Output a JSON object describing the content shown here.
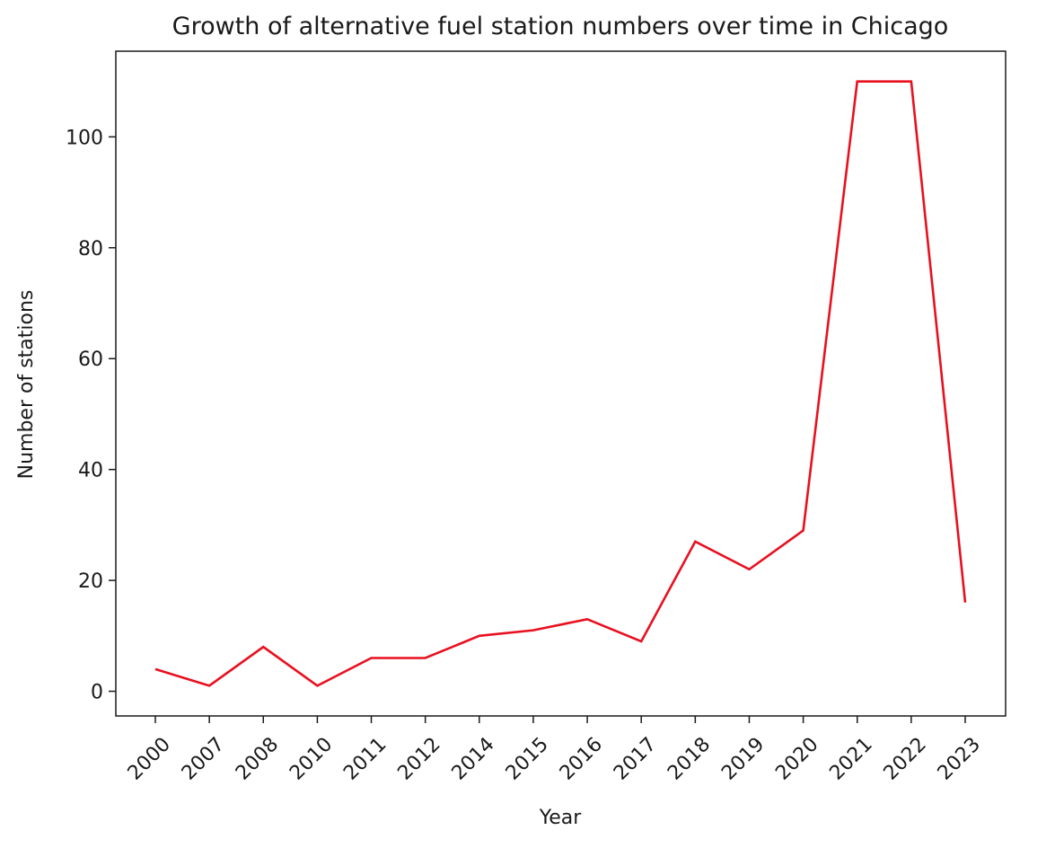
{
  "chart_data": {
    "type": "line",
    "title": "Growth of alternative fuel station numbers over time in Chicago",
    "xlabel": "Year",
    "ylabel": "Number of stations",
    "categories": [
      "2000",
      "2007",
      "2008",
      "2010",
      "2011",
      "2012",
      "2014",
      "2015",
      "2016",
      "2017",
      "2018",
      "2019",
      "2020",
      "2021",
      "2022",
      "2023"
    ],
    "values": [
      4,
      1,
      8,
      1,
      6,
      6,
      10,
      11,
      13,
      9,
      27,
      22,
      29,
      110,
      110,
      16
    ],
    "y_ticks": [
      0,
      20,
      40,
      60,
      80,
      100
    ],
    "ylim": [
      -4.45,
      115.45
    ],
    "grid": false,
    "line_color": "#e8101f",
    "x_tick_rotation_deg": 45
  }
}
